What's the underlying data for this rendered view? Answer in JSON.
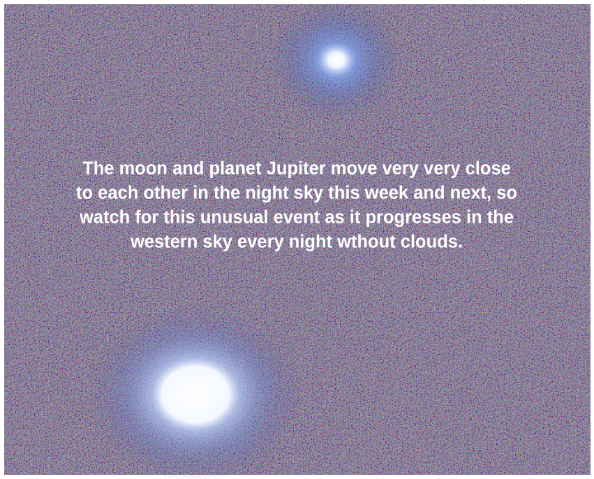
{
  "caption": {
    "lines": [
      "The moon and planet Jupiter move very very close",
      "to each other in the night sky this week and next, so",
      "watch for this unusual event as it progresses in the",
      "western sky every night wthout clouds."
    ]
  }
}
